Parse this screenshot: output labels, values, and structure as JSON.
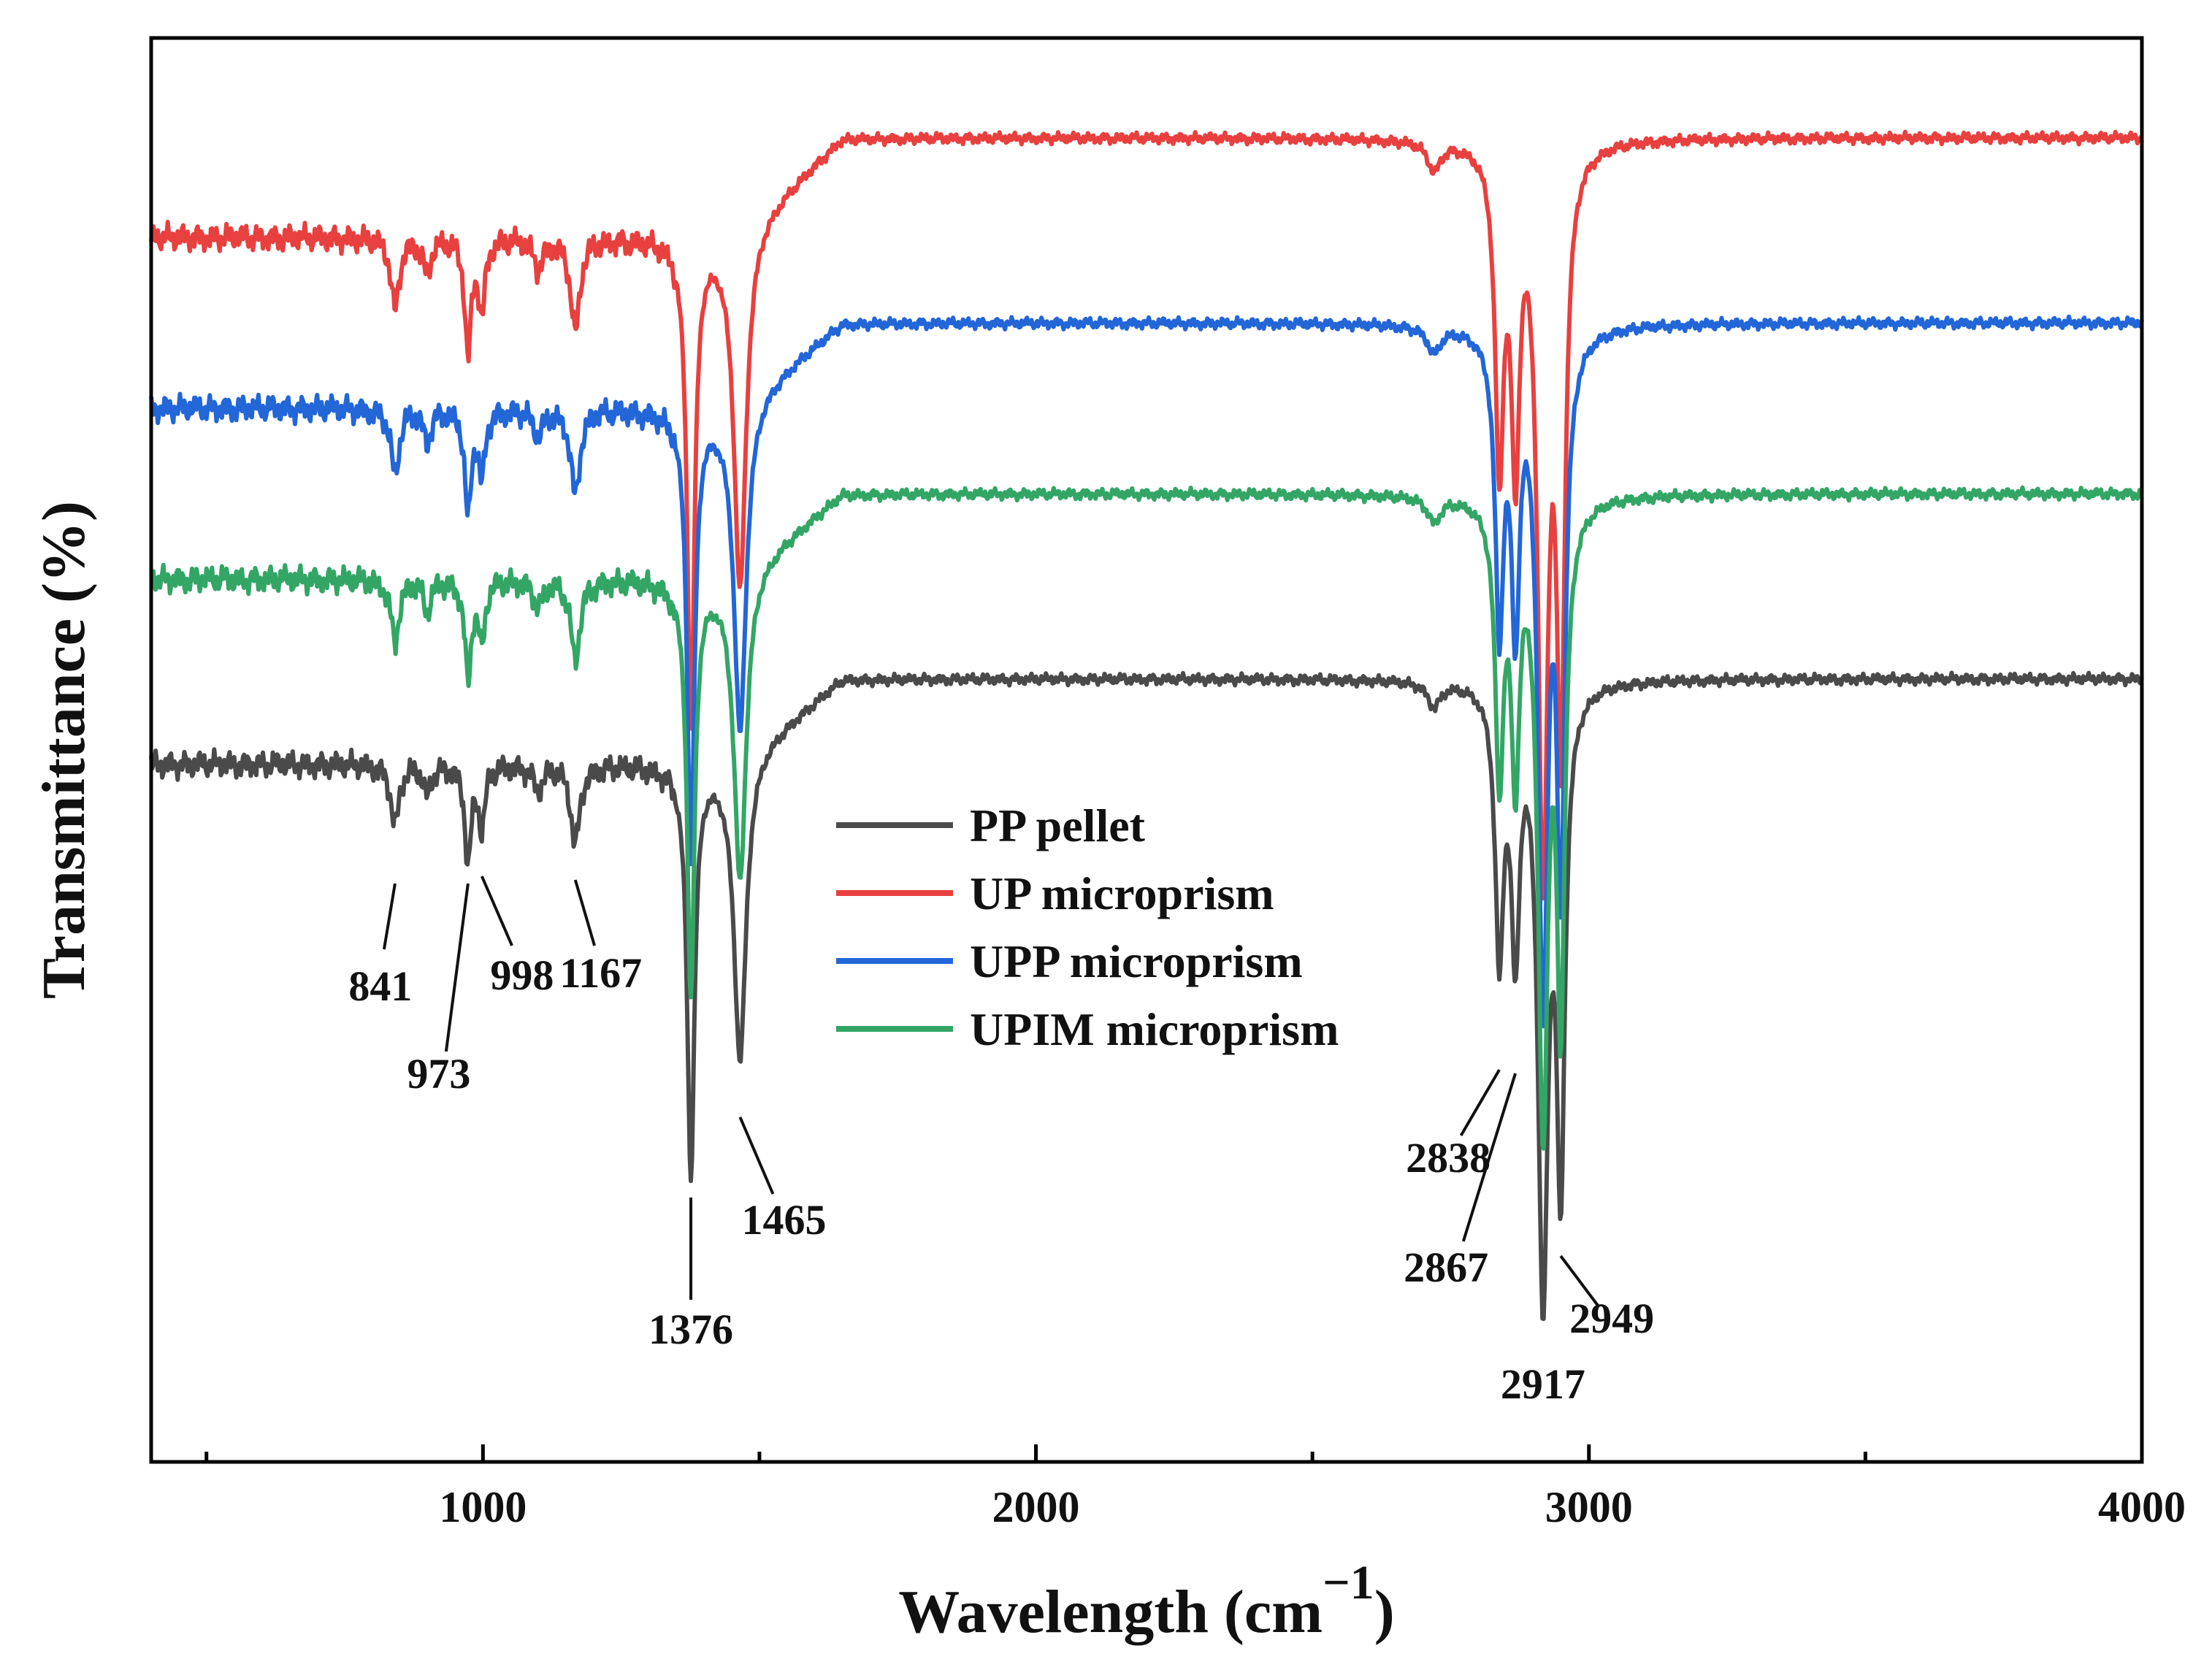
{
  "chart_data": {
    "type": "line",
    "title": "",
    "xlabel": "Wavelength (cm",
    "xlabel_sup": "−1",
    "xlabel_close": ")",
    "ylabel": "Transmittance (%)",
    "xlim": [
      400,
      4000
    ],
    "ylim": [
      0,
      100
    ],
    "x_ticks": [
      1000,
      2000,
      3000,
      4000
    ],
    "x_tick_labels": [
      "1000",
      "2000",
      "3000",
      "4000"
    ],
    "x_minor_ticks": [
      500,
      1500,
      2500,
      3500
    ],
    "grid": false,
    "legend": {
      "position": "center-right",
      "entries": [
        "PP pellet",
        "UP microprism",
        "UPP microprism",
        "UPIM microprism"
      ]
    },
    "series": [
      {
        "name": "PP pellet",
        "color": "#4a4a4a",
        "baseline": 49,
        "plateau": 55,
        "peak_depth": 42
      },
      {
        "name": "UP microprism",
        "color": "#e8403f",
        "baseline": 86,
        "plateau": 93,
        "peak_depth": 50
      },
      {
        "name": "UPP microprism",
        "color": "#2266d8",
        "baseline": 74,
        "plateau": 80,
        "peak_depth": 46
      },
      {
        "name": "UPIM microprism",
        "color": "#33a666",
        "baseline": 62,
        "plateau": 68,
        "peak_depth": 43
      }
    ],
    "peaks": [
      {
        "wavenumber": 841,
        "depth": 0.1,
        "width": 9
      },
      {
        "wavenumber": 899,
        "depth": 0.05,
        "width": 8
      },
      {
        "wavenumber": 973,
        "depth": 0.16,
        "width": 7
      },
      {
        "wavenumber": 998,
        "depth": 0.1,
        "width": 7
      },
      {
        "wavenumber": 1100,
        "depth": 0.04,
        "width": 10
      },
      {
        "wavenumber": 1167,
        "depth": 0.13,
        "width": 10
      },
      {
        "wavenumber": 1376,
        "depth": 0.68,
        "width": 8
      },
      {
        "wavenumber": 1465,
        "depth": 0.5,
        "width": 13
      },
      {
        "wavenumber": 2720,
        "depth": 0.04,
        "width": 14
      },
      {
        "wavenumber": 2838,
        "depth": 0.44,
        "width": 9
      },
      {
        "wavenumber": 2867,
        "depth": 0.42,
        "width": 9
      },
      {
        "wavenumber": 2917,
        "depth": 1.0,
        "width": 11
      },
      {
        "wavenumber": 2949,
        "depth": 0.8,
        "width": 9
      }
    ],
    "peak_annotations": [
      {
        "label": "841",
        "wavenumber": 841
      },
      {
        "label": "973",
        "wavenumber": 973
      },
      {
        "label": "998",
        "wavenumber": 998
      },
      {
        "label": "1167",
        "wavenumber": 1167
      },
      {
        "label": "1376",
        "wavenumber": 1376
      },
      {
        "label": "1465",
        "wavenumber": 1465
      },
      {
        "label": "2838",
        "wavenumber": 2838
      },
      {
        "label": "2867",
        "wavenumber": 2867
      },
      {
        "label": "2917",
        "wavenumber": 2917
      },
      {
        "label": "2949",
        "wavenumber": 2949
      }
    ]
  }
}
